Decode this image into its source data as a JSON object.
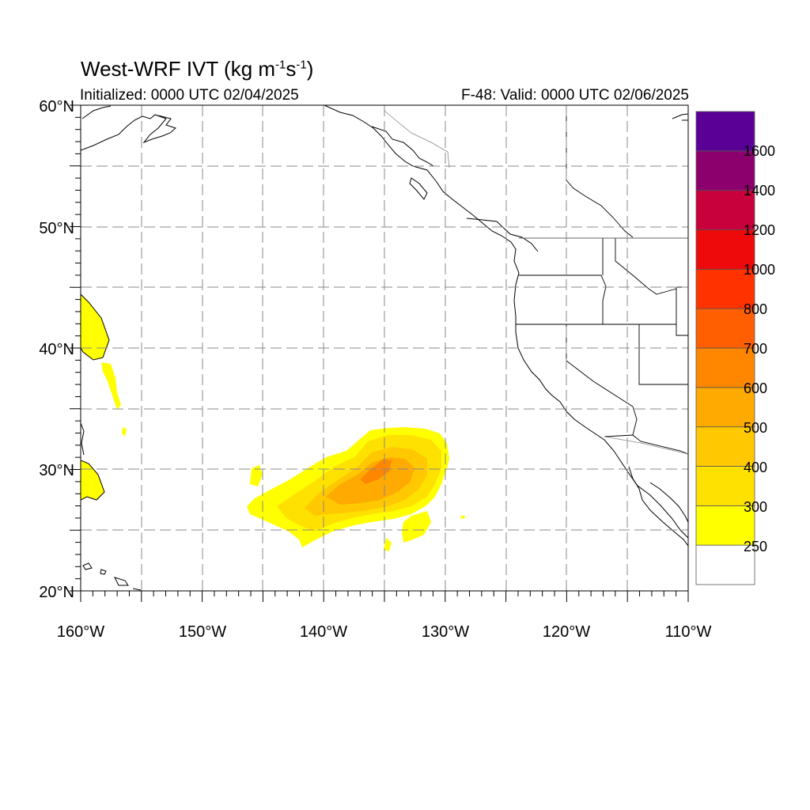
{
  "title": {
    "prefix": "West-WRF IVT (kg m",
    "exp1": "-1",
    "middle": "s",
    "exp2": "-1",
    "suffix": ")"
  },
  "subtitle_left": "Initialized: 0000 UTC 02/04/2025",
  "subtitle_right": "F-48: Valid: 0000 UTC 02/06/2025",
  "lat_labels": [
    "60°N",
    "50°N",
    "40°N",
    "30°N",
    "20°N"
  ],
  "lon_labels": [
    "160°W",
    "150°W",
    "140°W",
    "130°W",
    "120°W",
    "110°W"
  ],
  "colorbar": {
    "labels": [
      "250",
      "300",
      "400",
      "500",
      "600",
      "700",
      "800",
      "1000",
      "1200",
      "1400",
      "1600"
    ],
    "colors": [
      "#ffffff",
      "#ffff00",
      "#ffe100",
      "#ffc800",
      "#ffaa00",
      "#ff8700",
      "#ff5f00",
      "#ff3200",
      "#ee0a0a",
      "#c8003c",
      "#8c006e",
      "#5a0096"
    ]
  },
  "field_colors": {
    "c250": "#ffff00",
    "c300": "#ffe100",
    "c400": "#ffc800",
    "c500": "#ffaa00",
    "c600": "#ff8700"
  }
}
